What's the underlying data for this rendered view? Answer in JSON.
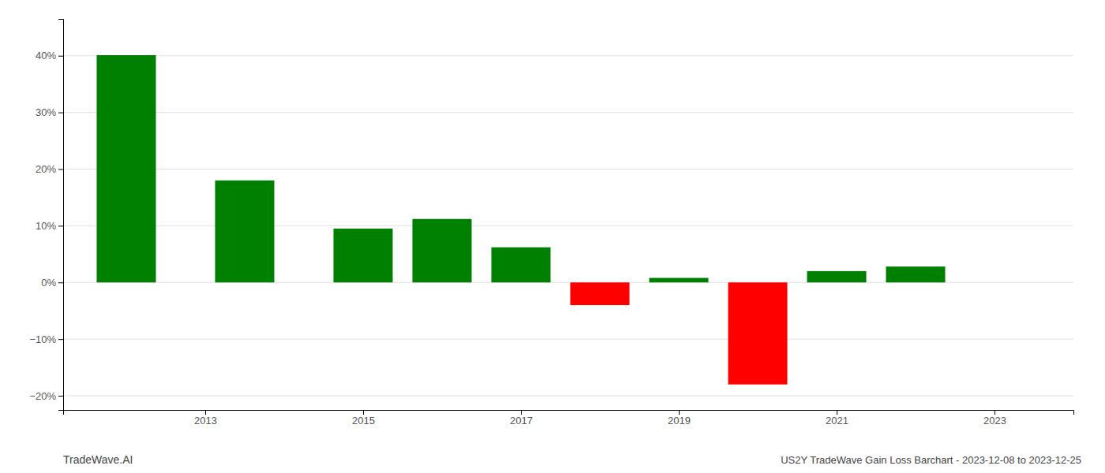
{
  "chart_data": {
    "type": "bar",
    "title": "US2Y TradeWave Gain Loss Barchart - 2023-12-08 to 2023-12-25",
    "annotations": [
      {
        "text": "TradeWave.AI"
      }
    ],
    "x": [
      2012,
      2013.5,
      2015,
      2016,
      2017,
      2018,
      2019,
      2020,
      2021,
      2022
    ],
    "values": [
      0.401,
      0.18,
      0.095,
      0.112,
      0.062,
      -0.04,
      0.008,
      -0.18,
      0.02,
      0.028
    ],
    "colors": [
      "#008000",
      "#008000",
      "#008000",
      "#008000",
      "#008000",
      "#ff0000",
      "#008000",
      "#ff0000",
      "#008000",
      "#008000"
    ],
    "xlim": [
      2011.2,
      2024.0
    ],
    "ylim": [
      -0.225,
      0.465
    ],
    "xticks": [
      2013,
      2015,
      2017,
      2019,
      2021,
      2023
    ],
    "yticks": [
      {
        "value": -0.2,
        "label": "−20%"
      },
      {
        "value": -0.1,
        "label": "−10%"
      },
      {
        "value": 0.0,
        "label": "0%"
      },
      {
        "value": 0.1,
        "label": "10%"
      },
      {
        "value": 0.2,
        "label": "20%"
      },
      {
        "value": 0.3,
        "label": "30%"
      },
      {
        "value": 0.4,
        "label": "40%"
      }
    ],
    "grid": true
  }
}
